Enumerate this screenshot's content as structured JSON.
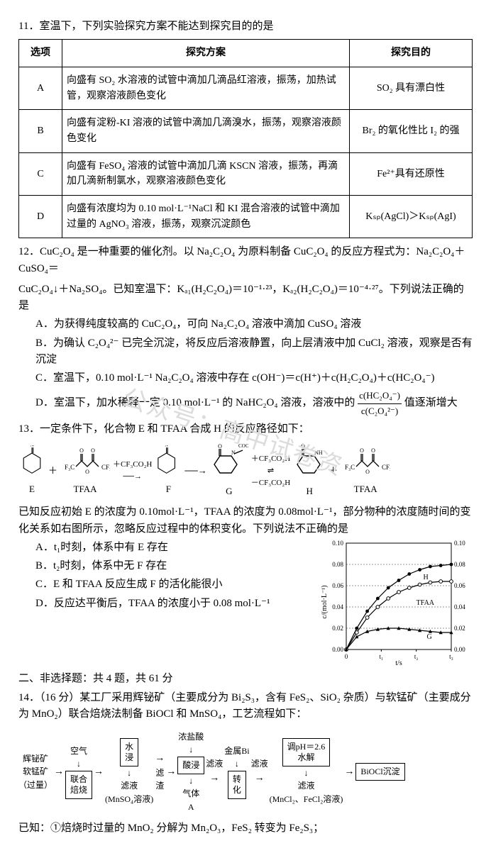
{
  "q11": {
    "number": "11．",
    "stem": "室温下，下列实验探究方案不能达到探究目的的是",
    "headers": [
      "选项",
      "探究方案",
      "探究目的"
    ],
    "rows": [
      {
        "opt": "A",
        "plan": "向盛有 SO₂ 水溶液的试管中滴加几滴品红溶液，振荡，加热试管，观察溶液颜色变化",
        "goal": "SO₂ 具有漂白性"
      },
      {
        "opt": "B",
        "plan": "向盛有淀粉-KI 溶液的试管中滴加几滴溴水，振荡，观察溶液颜色变化",
        "goal": "Br₂ 的氧化性比 I₂ 的强"
      },
      {
        "opt": "C",
        "plan": "向盛有 FeSO₄ 溶液的试管中滴加几滴 KSCN 溶液，振荡，再滴加几滴新制氯水，观察溶液颜色变化",
        "goal": "Fe²⁺具有还原性"
      },
      {
        "opt": "D",
        "plan": "向盛有浓度均为 0.10 mol·L⁻¹NaCl 和 KI 混合溶液的试管中滴加过量的 AgNO₃ 溶液，振荡，观察沉淀颜色",
        "goal": "Kₛₚ(AgCl)＞Kₛₚ(AgI)"
      }
    ]
  },
  "q12": {
    "number": "12．",
    "stem_a": "CuC₂O₄ 是一种重要的催化剂。以 Na₂C₂O₄ 为原料制备 CuC₂O₄ 的反应方程式为：Na₂C₂O₄＋CuSO₄＝",
    "stem_b": "CuC₂O₄↓＋Na₂SO₄。已知室温下：Kₐ₁(H₂C₂O₄)＝10⁻¹·²³，Kₐ₂(H₂C₂O₄)＝10⁻⁴·²⁷。下列说法正确的是",
    "opts": {
      "A": "A．为获得纯度较高的 CuC₂O₄，可向 Na₂C₂O₄ 溶液中滴加 CuSO₄ 溶液",
      "B": "B．为确认 C₂O₄²⁻ 已完全沉淀，将反应后溶液静置，向上层清液中加 CuCl₂ 溶液，观察是否有沉淀",
      "C": "C．室温下，0.10 mol·L⁻¹ Na₂C₂O₄ 溶液中存在 c(OH⁻)＝c(H⁺)＋c(H₂C₂O₄)＋c(HC₂O₄⁻)",
      "D_pre": "D．室温下，加水稀释一定 0.10 mol·L⁻¹ 的 NaHC₂O₄ 溶液，溶液中的",
      "D_frac_top": "c(HC₂O₄⁻)",
      "D_frac_bot": "c(C₂O₄²⁻)",
      "D_post": "值逐渐增大"
    }
  },
  "q13": {
    "number": "13．",
    "stem": "一定条件下，化合物 E 和 TFAA 合成 H 的反应路径如下：",
    "labels": {
      "E": "E",
      "TFAA": "TFAA",
      "F": "F",
      "G": "G",
      "H": "H",
      "TFAA2": "TFAA"
    },
    "arrow_texts": {
      "a1_top": "＋CF₃CO₂H",
      "a2_top": "＋CF₃CO₂H",
      "a2_bot": "－CF₃CO₂H"
    },
    "formula": {
      "oh": "OH",
      "noh": "N",
      "cocf3": "COCF₃",
      "oocf3": "OOCCF₃",
      "tfaa_piece": "F₃C",
      "tfaa_o": "O"
    },
    "para_a": "已知反应初始 E 的浓度为 0.10mol·L⁻¹，TFAA 的浓度为 0.08mol·L⁻¹，部分物种的浓度随时间的变化关系如右图所示，忽略反应过程中的体积变化。下列说法不正确的是",
    "opts": {
      "A": "A．t₁时刻，体系中有 E 存在",
      "B": "B．t₂时刻，体系中无 F 存在",
      "C": "C．E 和 TFAA 反应生成 F 的活化能很小",
      "D": "D．反应达平衡后，TFAA 的浓度小于 0.08 mol·L⁻¹"
    },
    "chart": {
      "type": "line",
      "y_label": "c/(mol·L⁻¹)",
      "x_label": "t/s",
      "xlim": [
        0,
        3
      ],
      "ylim": [
        0,
        0.1
      ],
      "yticks": [
        0,
        0.02,
        0.04,
        0.06,
        0.08,
        0.1
      ],
      "xticks_labels": [
        "0",
        "t₁",
        "t₂",
        "t₃"
      ],
      "series": [
        {
          "name": "H",
          "marker": "●",
          "color": "#000000",
          "x": [
            0,
            0.3,
            0.6,
            0.9,
            1.2,
            1.5,
            1.8,
            2.1,
            2.4,
            2.7,
            3.0
          ],
          "y": [
            0,
            0.02,
            0.036,
            0.048,
            0.058,
            0.065,
            0.071,
            0.075,
            0.078,
            0.079,
            0.08
          ]
        },
        {
          "name": "TFAA",
          "marker": "○",
          "color": "#000000",
          "x": [
            0,
            0.3,
            0.6,
            0.9,
            1.2,
            1.5,
            1.8,
            2.1,
            2.4,
            2.7,
            3.0
          ],
          "y": [
            0,
            0.016,
            0.03,
            0.04,
            0.048,
            0.054,
            0.058,
            0.061,
            0.063,
            0.064,
            0.064
          ]
        },
        {
          "name": "G",
          "marker": "▲",
          "color": "#000000",
          "x": [
            0,
            0.3,
            0.6,
            0.9,
            1.2,
            1.5,
            1.8,
            2.1,
            2.4,
            2.7,
            3.0
          ],
          "y": [
            0,
            0.012,
            0.017,
            0.019,
            0.02,
            0.02,
            0.019,
            0.018,
            0.017,
            0.016,
            0.016
          ]
        }
      ],
      "labels_on_chart": {
        "H": "H",
        "TFAA": "TFAA",
        "G": "G"
      }
    }
  },
  "section2": "二、非选择题：共 4 题，共 61 分",
  "q14": {
    "number": "14．",
    "stem": "（16 分）某工厂采用辉铋矿（主要成分为 Bi₂S₃，含有 FeS₂、SiO₂ 杂质）与软锰矿（主要成分为 MnO₂）联合焙烧法制备 BiOCl 和 MnSO₄，工艺流程如下：",
    "flow": {
      "in1": "辉铋矿",
      "in2": "软锰矿",
      "in3": "（过量）",
      "air": "空气",
      "box1": "联合\n焙烧",
      "box2": "水\n浸",
      "below2a": "滤液",
      "below2b": "(MnSO₄溶液)",
      "res": "滤\n渣",
      "hcl": "浓盐酸",
      "box3": "酸浸",
      "below3": "气体\nA",
      "lye": "滤液",
      "metal": "金属Bi",
      "box4": "转\n化",
      "lye2": "滤液",
      "box5": "调pH＝2.6\n水解",
      "below5": "滤液",
      "below5b": "(MnCl₂、FeCl₂溶液)",
      "out": "BiOCl沉淀"
    },
    "known": "已知：①焙烧时过量的 MnO₂ 分解为 Mn₂O₃，FeS₂ 转变为 Fe₂S₃；"
  },
  "watermark": "公众号：高中试卷资"
}
